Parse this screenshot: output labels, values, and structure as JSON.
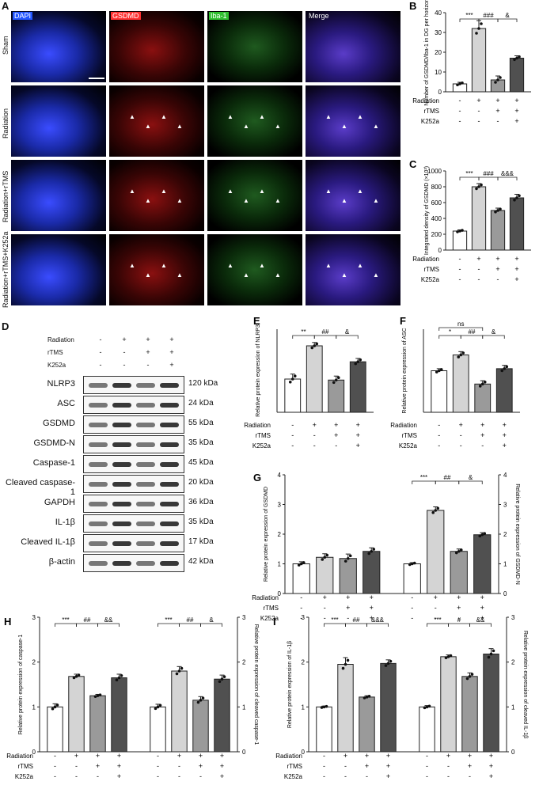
{
  "panelA": {
    "letter": "A",
    "columns": [
      "DAPI",
      "GSDMD",
      "Iba-1",
      "Merge"
    ],
    "column_colors": [
      "#2255ff",
      "#ff3030",
      "#30c030",
      "#ffffff"
    ],
    "rows": [
      "Sham",
      "Radiation",
      "Radiation+rTMS",
      "Radiation+rTMS+K252a"
    ]
  },
  "panelD": {
    "letter": "D",
    "conditions": [
      {
        "label": "Radiation",
        "signs": [
          "-",
          "+",
          "+",
          "+"
        ]
      },
      {
        "label": "rTMS",
        "signs": [
          "-",
          "-",
          "+",
          "+"
        ]
      },
      {
        "label": "K252a",
        "signs": [
          "-",
          "-",
          "-",
          "+"
        ]
      }
    ],
    "blots": [
      {
        "name": "NLRP3",
        "kda": "120 kDa"
      },
      {
        "name": "ASC",
        "kda": "24 kDa"
      },
      {
        "name": "GSDMD",
        "kda": "55 kDa"
      },
      {
        "name": "GSDMD-N",
        "kda": "35 kDa"
      },
      {
        "name": "Caspase-1",
        "kda": "45 kDa"
      },
      {
        "name": "Cleaved caspase-1",
        "kda": "20 kDa"
      },
      {
        "name": "GAPDH",
        "kda": "36 kDa"
      },
      {
        "name": "IL-1β",
        "kda": "35 kDa"
      },
      {
        "name": "Cleaved IL-1β",
        "kda": "17 kDa"
      },
      {
        "name": "β-actin",
        "kda": "42 kDa"
      }
    ]
  },
  "colors": {
    "bar_fills": [
      "#ffffff",
      "#d4d4d4",
      "#9a9a9a",
      "#505050"
    ],
    "line": "#222222"
  },
  "chart_data": [
    {
      "id": "B",
      "type": "bar",
      "letter": "B",
      "ylabel": "Number of GSDMD/Iba-1 in DG per horizon",
      "ylim": [
        0,
        40
      ],
      "yticks": [
        0,
        10,
        20,
        30,
        40
      ],
      "groups": [
        {
          "values": [
            4,
            32,
            6,
            17
          ],
          "errors": [
            0.8,
            4,
            2,
            1.2
          ]
        }
      ],
      "sig": [
        {
          "text": "***",
          "from": 0,
          "to": 1
        },
        {
          "text": "###",
          "from": 1,
          "to": 2
        },
        {
          "text": "&",
          "from": 2,
          "to": 3
        }
      ],
      "conditions": [
        {
          "label": "Radiation",
          "signs": [
            "-",
            "+",
            "+",
            "+"
          ]
        },
        {
          "label": "rTMS",
          "signs": [
            "-",
            "-",
            "+",
            "+"
          ]
        },
        {
          "label": "K252a",
          "signs": [
            "-",
            "-",
            "-",
            "+"
          ]
        }
      ]
    },
    {
      "id": "C",
      "type": "bar",
      "letter": "C",
      "ylabel": "Integrated density of GSDMD (×10³)",
      "ylim": [
        0,
        1000
      ],
      "yticks": [
        0,
        200,
        400,
        600,
        800,
        1000
      ],
      "groups": [
        {
          "values": [
            240,
            800,
            500,
            660
          ],
          "errors": [
            15,
            40,
            30,
            45
          ]
        }
      ],
      "sig": [
        {
          "text": "***",
          "from": 0,
          "to": 1
        },
        {
          "text": "###",
          "from": 1,
          "to": 2
        },
        {
          "text": "&&&",
          "from": 2,
          "to": 3
        }
      ],
      "conditions": [
        {
          "label": "Radiation",
          "signs": [
            "-",
            "+",
            "+",
            "+"
          ]
        },
        {
          "label": "rTMS",
          "signs": [
            "-",
            "-",
            "+",
            "+"
          ]
        },
        {
          "label": "K252a",
          "signs": [
            "-",
            "-",
            "-",
            "+"
          ]
        }
      ]
    },
    {
      "id": "E",
      "type": "bar",
      "letter": "E",
      "ylabel": "Relative protein expression of NLRP3",
      "ylim": [
        0,
        2.5
      ],
      "yticks": [],
      "groups": [
        {
          "values": [
            1.0,
            2.0,
            0.97,
            1.52
          ],
          "errors": [
            0.15,
            0.1,
            0.12,
            0.1
          ]
        }
      ],
      "sig": [
        {
          "text": "**",
          "from": 0,
          "to": 1
        },
        {
          "text": "##",
          "from": 1,
          "to": 2
        },
        {
          "text": "&",
          "from": 2,
          "to": 3
        }
      ],
      "conditions": [
        {
          "label": "Radiation",
          "signs": [
            "-",
            "+",
            "+",
            "+"
          ]
        },
        {
          "label": "rTMS",
          "signs": [
            "-",
            "-",
            "+",
            "+"
          ]
        },
        {
          "label": "K252a",
          "signs": [
            "-",
            "-",
            "-",
            "+"
          ]
        }
      ]
    },
    {
      "id": "F",
      "type": "bar",
      "letter": "F",
      "ylabel": "Relative protein expression of ASC",
      "ylim": [
        0,
        2.0
      ],
      "yticks": [],
      "groups": [
        {
          "values": [
            1.0,
            1.38,
            0.68,
            1.05
          ],
          "errors": [
            0.05,
            0.08,
            0.08,
            0.08
          ]
        }
      ],
      "sig": [
        {
          "text": "ns",
          "from": 0,
          "to": 2,
          "level": 2
        },
        {
          "text": "*",
          "from": 0,
          "to": 1
        },
        {
          "text": "##",
          "from": 1,
          "to": 2
        },
        {
          "text": "&",
          "from": 2,
          "to": 3
        }
      ],
      "conditions": [
        {
          "label": "Radiation",
          "signs": [
            "-",
            "+",
            "+",
            "+"
          ]
        },
        {
          "label": "rTMS",
          "signs": [
            "-",
            "-",
            "+",
            "+"
          ]
        },
        {
          "label": "K252a",
          "signs": [
            "-",
            "-",
            "-",
            "+"
          ]
        }
      ]
    },
    {
      "id": "G",
      "type": "bar",
      "letter": "G",
      "ylabel": "Relative protein expression of GSDMD",
      "ylabel2": "Relative protein expression of GSDMD-N",
      "ylim": [
        0,
        4
      ],
      "yticks": [
        0,
        1,
        2,
        3,
        4
      ],
      "yticks2": [
        0,
        1,
        2,
        3,
        4
      ],
      "groups": [
        {
          "values": [
            1.0,
            1.22,
            1.18,
            1.42
          ],
          "errors": [
            0.07,
            0.12,
            0.15,
            0.12
          ]
        },
        {
          "values": [
            1.0,
            2.8,
            1.42,
            1.98
          ],
          "errors": [
            0.04,
            0.12,
            0.08,
            0.07
          ]
        }
      ],
      "sig": [
        {
          "text": "***",
          "group": 1,
          "from": 0,
          "to": 1
        },
        {
          "text": "##",
          "group": 1,
          "from": 1,
          "to": 2
        },
        {
          "text": "&",
          "group": 1,
          "from": 2,
          "to": 3
        }
      ],
      "conditions": [
        {
          "label": "Radiation",
          "signs": [
            "-",
            "+",
            "+",
            "+",
            "-",
            "+",
            "+",
            "+"
          ]
        },
        {
          "label": "rTMS",
          "signs": [
            "-",
            "-",
            "+",
            "+",
            "-",
            "-",
            "+",
            "+"
          ]
        },
        {
          "label": "K252a",
          "signs": [
            "-",
            "-",
            "-",
            "+",
            "-",
            "-",
            "-",
            "+"
          ]
        }
      ]
    },
    {
      "id": "H",
      "type": "bar",
      "letter": "H",
      "ylabel": "Relative protein expression of caspase-1",
      "ylabel2": "Relative protein expression of cleaved caspase-1",
      "ylim": [
        0,
        3
      ],
      "yticks": [
        0,
        1,
        2,
        3
      ],
      "yticks2": [
        0,
        1,
        2,
        3
      ],
      "groups": [
        {
          "values": [
            1.0,
            1.68,
            1.25,
            1.65
          ],
          "errors": [
            0.07,
            0.05,
            0.03,
            0.08
          ]
        },
        {
          "values": [
            1.0,
            1.8,
            1.15,
            1.62
          ],
          "errors": [
            0.06,
            0.1,
            0.08,
            0.09
          ]
        }
      ],
      "sig": [
        {
          "text": "***",
          "group": 0,
          "from": 0,
          "to": 1
        },
        {
          "text": "##",
          "group": 0,
          "from": 1,
          "to": 2
        },
        {
          "text": "&&",
          "group": 0,
          "from": 2,
          "to": 3
        },
        {
          "text": "***",
          "group": 1,
          "from": 0,
          "to": 1
        },
        {
          "text": "##",
          "group": 1,
          "from": 1,
          "to": 2
        },
        {
          "text": "&",
          "group": 1,
          "from": 2,
          "to": 3
        }
      ],
      "conditions": [
        {
          "label": "Radiation",
          "signs": [
            "-",
            "+",
            "+",
            "+",
            "-",
            "+",
            "+",
            "+"
          ]
        },
        {
          "label": "rTMS",
          "signs": [
            "-",
            "-",
            "+",
            "+",
            "-",
            "-",
            "+",
            "+"
          ]
        },
        {
          "label": "K252a",
          "signs": [
            "-",
            "-",
            "-",
            "+",
            "-",
            "-",
            "-",
            "+"
          ]
        }
      ]
    },
    {
      "id": "I",
      "type": "bar",
      "letter": "I",
      "ylabel": "Relative protein expression of IL-1β",
      "ylabel2": "Relative protein expression of cleaved IL-1β",
      "ylim": [
        0,
        3
      ],
      "yticks": [
        0,
        1,
        2,
        3
      ],
      "yticks2": [
        0,
        1,
        2,
        3
      ],
      "groups": [
        {
          "values": [
            1.0,
            1.95,
            1.22,
            1.97
          ],
          "errors": [
            0.02,
            0.15,
            0.03,
            0.08
          ]
        },
        {
          "values": [
            1.0,
            2.12,
            1.68,
            2.18
          ],
          "errors": [
            0.03,
            0.04,
            0.08,
            0.12
          ]
        }
      ],
      "sig": [
        {
          "text": "***",
          "group": 0,
          "from": 0,
          "to": 1
        },
        {
          "text": "##",
          "group": 0,
          "from": 1,
          "to": 2
        },
        {
          "text": "&&&",
          "group": 0,
          "from": 2,
          "to": 3
        },
        {
          "text": "***",
          "group": 1,
          "from": 0,
          "to": 1
        },
        {
          "text": "#",
          "group": 1,
          "from": 1,
          "to": 2
        },
        {
          "text": "&&",
          "group": 1,
          "from": 2,
          "to": 3
        }
      ],
      "conditions": [
        {
          "label": "Radiation",
          "signs": [
            "-",
            "+",
            "+",
            "+",
            "-",
            "+",
            "+",
            "+"
          ]
        },
        {
          "label": "rTMS",
          "signs": [
            "-",
            "-",
            "+",
            "+",
            "-",
            "-",
            "+",
            "+"
          ]
        },
        {
          "label": "K252a",
          "signs": [
            "-",
            "-",
            "-",
            "+",
            "-",
            "-",
            "-",
            "+"
          ]
        }
      ]
    }
  ]
}
